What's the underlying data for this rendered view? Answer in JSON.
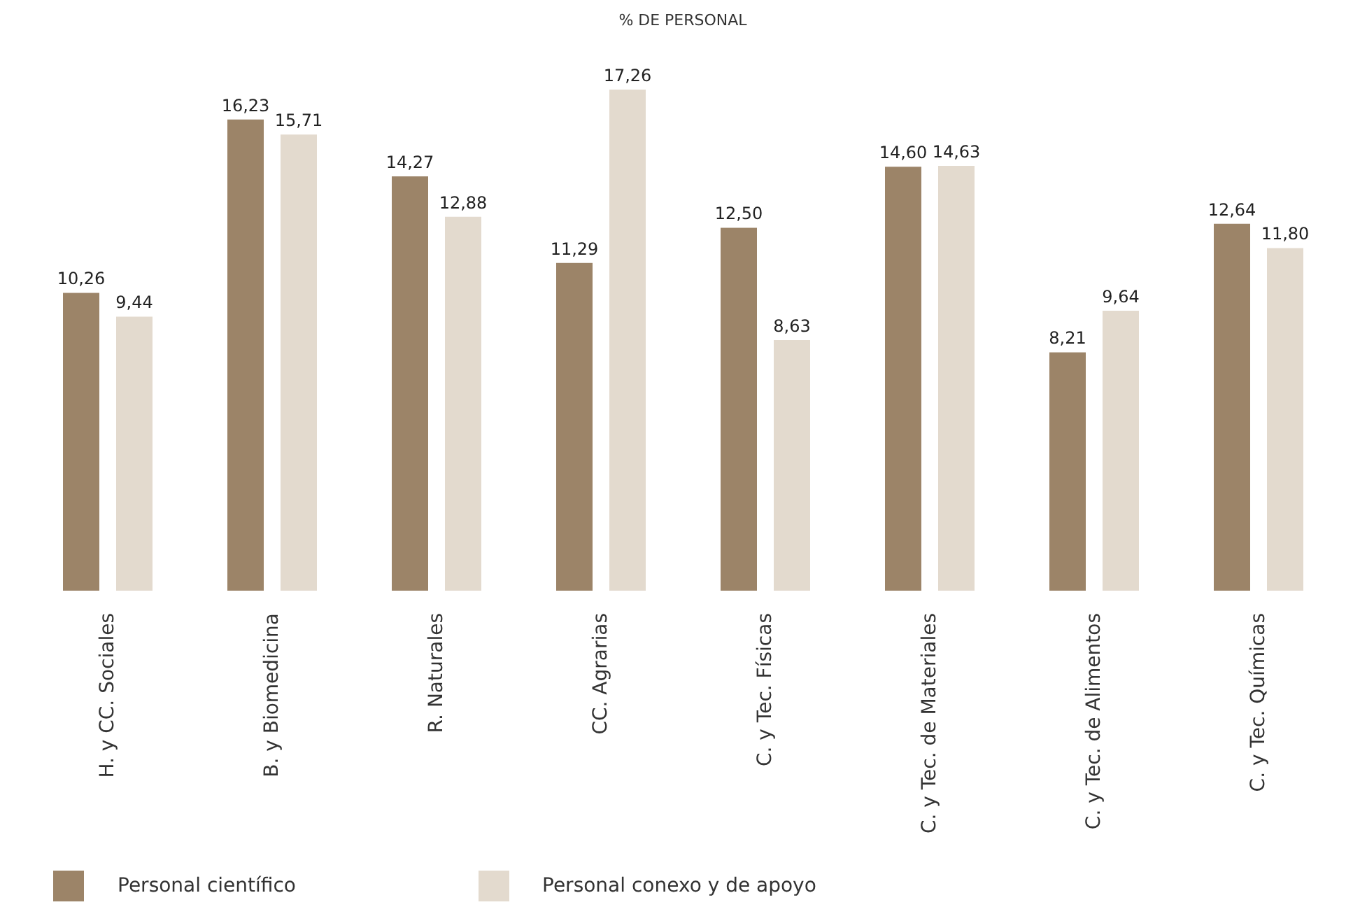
{
  "chart_data": {
    "type": "bar",
    "title": "% DE PERSONAL",
    "categories": [
      "H. y CC. Sociales",
      "B. y Biomedicina",
      "R. Naturales",
      "CC. Agrarias",
      "C. y Tec. Físicas",
      "C. y Tec. de Materiales",
      "C. y Tec. de Alimentos",
      "C. y Tec. Químicas"
    ],
    "series": [
      {
        "name": "Personal científico",
        "color": "#9c8468",
        "values": [
          10.26,
          16.23,
          14.27,
          11.29,
          12.5,
          14.6,
          8.21,
          12.64
        ],
        "value_labels": [
          "10,26",
          "16,23",
          "14,27",
          "11,29",
          "12,50",
          "14,60",
          "8,21",
          "12,64"
        ]
      },
      {
        "name": "Personal conexo y de apoyo",
        "color": "#e3dace",
        "values": [
          9.44,
          15.71,
          12.88,
          17.26,
          8.63,
          14.63,
          9.64,
          11.8
        ],
        "value_labels": [
          "9,44",
          "15,71",
          "12,88",
          "17,26",
          "8,63",
          "14,63",
          "9,64",
          "11,80"
        ]
      }
    ],
    "legend": "bottom left"
  }
}
